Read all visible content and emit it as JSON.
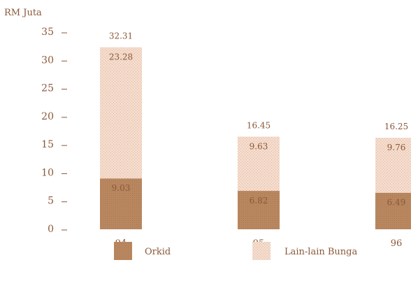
{
  "chart_data": {
    "type": "bar",
    "stacked": true,
    "ylabel": "RM Juta",
    "ylim": [
      0,
      35
    ],
    "yticks": [
      "0",
      "5",
      "10",
      "15",
      "20",
      "25",
      "30",
      "35"
    ],
    "categories": [
      "94",
      "95",
      "96"
    ],
    "series": [
      {
        "name": "Orkid",
        "values": [
          9.03,
          6.82,
          6.49
        ],
        "labels": [
          "9.03",
          "6.82",
          "6.49"
        ],
        "color": "#b88762"
      },
      {
        "name": "Lain-lain Bunga",
        "values": [
          23.28,
          9.63,
          9.76
        ],
        "labels": [
          "23.28",
          "9.63",
          "9.76"
        ],
        "color": "#f2d8c8"
      }
    ],
    "totals": [
      "32.31",
      "16.45",
      "16.25"
    ],
    "legend_position": "bottom",
    "text_color": "#8a5838"
  }
}
